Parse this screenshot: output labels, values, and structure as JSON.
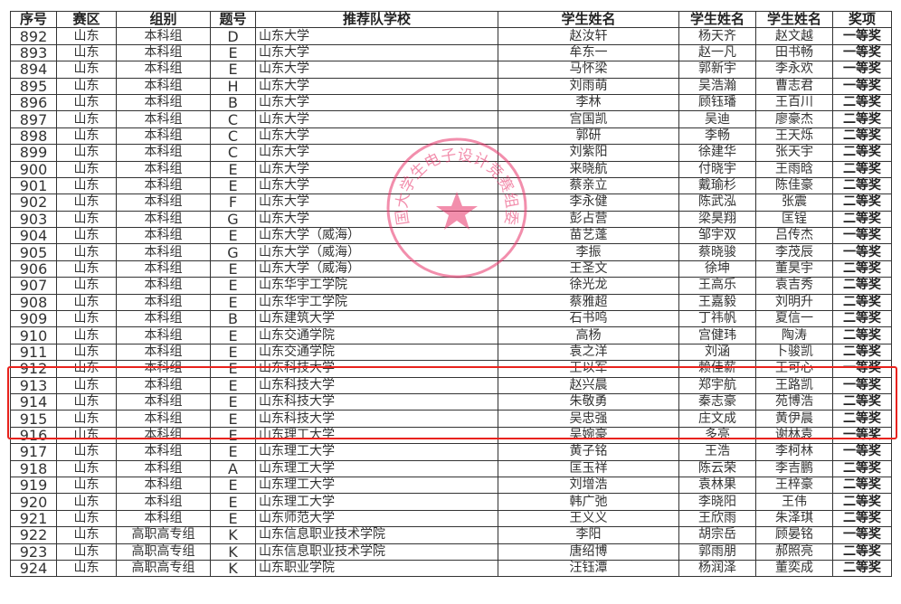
{
  "table": {
    "headers": [
      "序号",
      "赛区",
      "组别",
      "题号",
      "推荐队学校",
      "学生姓名",
      "学生姓名",
      "学生姓名",
      "奖项"
    ],
    "rows": [
      [
        "892",
        "山东",
        "本科组",
        "D",
        "山东大学",
        "赵汝轩",
        "杨天齐",
        "赵文越",
        "一等奖"
      ],
      [
        "893",
        "山东",
        "本科组",
        "E",
        "山东大学",
        "牟东一",
        "赵一凡",
        "田书畅",
        "一等奖"
      ],
      [
        "894",
        "山东",
        "本科组",
        "E",
        "山东大学",
        "马怀梁",
        "郭新宇",
        "李永欢",
        "一等奖"
      ],
      [
        "895",
        "山东",
        "本科组",
        "H",
        "山东大学",
        "刘雨萌",
        "吴浩瀚",
        "曹志君",
        "一等奖"
      ],
      [
        "896",
        "山东",
        "本科组",
        "B",
        "山东大学",
        "李林",
        "顾钰璠",
        "王百川",
        "二等奖"
      ],
      [
        "897",
        "山东",
        "本科组",
        "C",
        "山东大学",
        "宫国凯",
        "吴迪",
        "廖豪杰",
        "二等奖"
      ],
      [
        "898",
        "山东",
        "本科组",
        "C",
        "山东大学",
        "郭研",
        "李畅",
        "王天烁",
        "二等奖"
      ],
      [
        "899",
        "山东",
        "本科组",
        "C",
        "山东大学",
        "刘紫阳",
        "徐建华",
        "张天宇",
        "二等奖"
      ],
      [
        "900",
        "山东",
        "本科组",
        "E",
        "山东大学",
        "来晓航",
        "付晓宇",
        "王雨晗",
        "二等奖"
      ],
      [
        "901",
        "山东",
        "本科组",
        "E",
        "山东大学",
        "蔡亲立",
        "戴瑜杉",
        "陈佳豪",
        "二等奖"
      ],
      [
        "902",
        "山东",
        "本科组",
        "F",
        "山东大学",
        "李永健",
        "陈武泓",
        "张震",
        "二等奖"
      ],
      [
        "903",
        "山东",
        "本科组",
        "G",
        "山东大学",
        "彭占营",
        "梁昊翔",
        "匡锃",
        "二等奖"
      ],
      [
        "904",
        "山东",
        "本科组",
        "E",
        "山东大学（威海）",
        "苗艺蓬",
        "邹宇双",
        "吕传杰",
        "一等奖"
      ],
      [
        "905",
        "山东",
        "本科组",
        "G",
        "山东大学（威海）",
        "李振",
        "蔡晓骏",
        "李茂辰",
        "一等奖"
      ],
      [
        "906",
        "山东",
        "本科组",
        "E",
        "山东大学（威海）",
        "王圣文",
        "徐坤",
        "董昊宇",
        "二等奖"
      ],
      [
        "907",
        "山东",
        "本科组",
        "E",
        "山东华宇工学院",
        "徐光龙",
        "王高乐",
        "袁吉秀",
        "二等奖"
      ],
      [
        "908",
        "山东",
        "本科组",
        "E",
        "山东华宇工学院",
        "蔡雅超",
        "王嘉毅",
        "刘明升",
        "二等奖"
      ],
      [
        "909",
        "山东",
        "本科组",
        "B",
        "山东建筑大学",
        "石书鸣",
        "丁祎帆",
        "夏信一",
        "二等奖"
      ],
      [
        "910",
        "山东",
        "本科组",
        "E",
        "山东交通学院",
        "高杨",
        "宫健玮",
        "陶涛",
        "二等奖"
      ],
      [
        "911",
        "山东",
        "本科组",
        "E",
        "山东交通学院",
        "袁之洋",
        "刘涵",
        "卜骏凯",
        "二等奖"
      ],
      [
        "912",
        "山东",
        "本科组",
        "E",
        "山东科技大学",
        "王以军",
        "赖佳薪",
        "王可心",
        "一等奖"
      ],
      [
        "913",
        "山东",
        "本科组",
        "E",
        "山东科技大学",
        "赵兴晨",
        "郑宇航",
        "王路凯",
        "一等奖"
      ],
      [
        "914",
        "山东",
        "本科组",
        "E",
        "山东科技大学",
        "朱敬勇",
        "秦志豪",
        "苑博浩",
        "二等奖"
      ],
      [
        "915",
        "山东",
        "本科组",
        "E",
        "山东科技大学",
        "吴忠强",
        "庄文成",
        "黄伊晨",
        "二等奖"
      ],
      [
        "916",
        "山东",
        "本科组",
        "E",
        "山东理工大学",
        "吴婉豪",
        "多亮",
        "谢林袁",
        "一等奖"
      ],
      [
        "917",
        "山东",
        "本科组",
        "E",
        "山东理工大学",
        "黄子铭",
        "王浩",
        "李柯林",
        "一等奖"
      ],
      [
        "918",
        "山东",
        "本科组",
        "A",
        "山东理工大学",
        "匡玉祥",
        "陈云荣",
        "李吉鹏",
        "二等奖"
      ],
      [
        "919",
        "山东",
        "本科组",
        "E",
        "山东理工大学",
        "刘增浩",
        "袁林果",
        "王梓豪",
        "二等奖"
      ],
      [
        "920",
        "山东",
        "本科组",
        "E",
        "山东理工大学",
        "韩广弛",
        "李晓阳",
        "王伟",
        "二等奖"
      ],
      [
        "921",
        "山东",
        "本科组",
        "E",
        "山东师范大学",
        "王义义",
        "王欣雨",
        "朱泽琪",
        "二等奖"
      ],
      [
        "922",
        "山东",
        "高职高专组",
        "K",
        "山东信息职业技术学院",
        "李阳",
        "胡宗岳",
        "顾晏铭",
        "一等奖"
      ],
      [
        "923",
        "山东",
        "高职高专组",
        "K",
        "山东信息职业技术学院",
        "唐绍博",
        "郭雨朋",
        "郝照亮",
        "二等奖"
      ],
      [
        "924",
        "山东",
        "高职高专组",
        "K",
        "山东职业学院",
        "汪钰潭",
        "杨润泽",
        "董奕成",
        "二等奖"
      ]
    ]
  },
  "stamp": {
    "text": "全国大学生电子设计竞赛组委会",
    "color": "#e8336a"
  },
  "highlight": {
    "color": "#e8221c",
    "rows": [
      "912",
      "913",
      "914",
      "915"
    ]
  }
}
